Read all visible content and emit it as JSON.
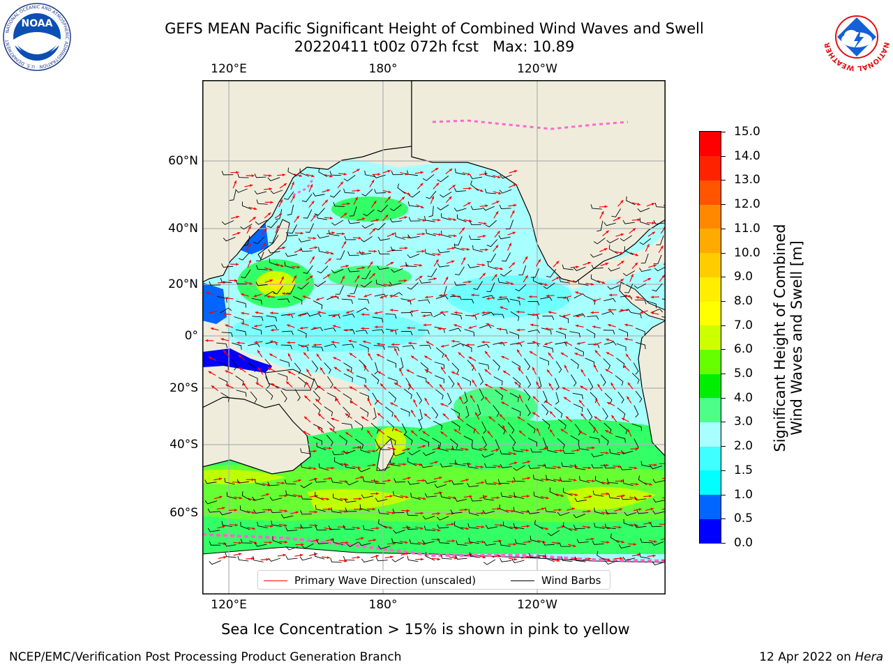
{
  "title": {
    "line1": "GEFS MEAN Pacific Significant Height of Combined Wind Waves and Swell",
    "line2": "20220411 t00z 072h fcst   Max: 10.89"
  },
  "logos": {
    "noaa_text": "NOAA",
    "noaa_ring": "NATIONAL OCEANIC AND ATMOSPHERIC ADMINISTRATION · U.S. DEPARTMENT OF COMMERCE",
    "nws_ring": "NATIONAL WEATHER SERVICE"
  },
  "map": {
    "lon_labels_top": [
      "120°E",
      "180°",
      "120°W"
    ],
    "lon_labels_bottom": [
      "120°E",
      "180°",
      "120°W"
    ],
    "lat_labels": [
      "60°N",
      "40°N",
      "20°N",
      "0°",
      "20°S",
      "40°S",
      "60°S"
    ],
    "colors": {
      "land": "#efecdc",
      "ocean_calm": "#a8ffff",
      "ocean_mid": "#40ffff",
      "ocean_high": "#33ff66",
      "ocean_higher": "#66ff33",
      "ocean_peak": "#ccff00",
      "ice": "#ff66cc",
      "wave_direction": "#ff0000",
      "wind_barb": "#000000",
      "grid": "#b0b0b0"
    }
  },
  "legend": {
    "wave_direction": "Primary Wave Direction (unscaled)",
    "wind_barbs": "Wind Barbs"
  },
  "colorbar": {
    "label_line1": "Significant Height of Combined",
    "label_line2": "Wind Waves and Swell [m]",
    "ticks": [
      "15.0",
      "14.0",
      "13.0",
      "12.0",
      "11.0",
      "10.0",
      "9.0",
      "8.0",
      "7.0",
      "6.0",
      "5.0",
      "4.0",
      "3.0",
      "2.0",
      "1.5",
      "1.0",
      "0.5",
      "0.0"
    ],
    "colors_bottom_to_top": [
      "#0000ff",
      "#0066ff",
      "#00ffff",
      "#40ffff",
      "#a8ffff",
      "#4dff88",
      "#00ee00",
      "#66ff00",
      "#ccff00",
      "#ffff00",
      "#ffee00",
      "#ffcc00",
      "#ffaa00",
      "#ff8800",
      "#ff5500",
      "#ff2200",
      "#ff0000"
    ]
  },
  "ice_note": "Sea Ice Concentration > 15% is shown in pink to yellow",
  "footer": {
    "left": "NCEP/EMC/Verification Post Processing Product Generation Branch",
    "right_prefix": "12 Apr 2022 on ",
    "right_machine": "Hera"
  }
}
